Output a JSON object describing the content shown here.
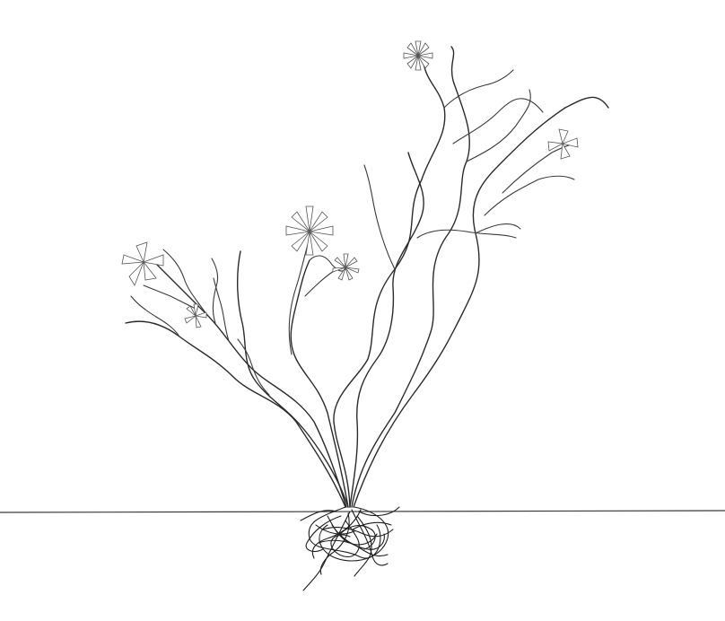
{
  "scene": {
    "subject": "line-drawing-plant",
    "colors": {
      "background": "#ffffff",
      "stroke": "#2b2b2b",
      "ground": "#3a3a3a"
    },
    "flower_count": 6,
    "ground_line": true,
    "root_tangle": true
  }
}
